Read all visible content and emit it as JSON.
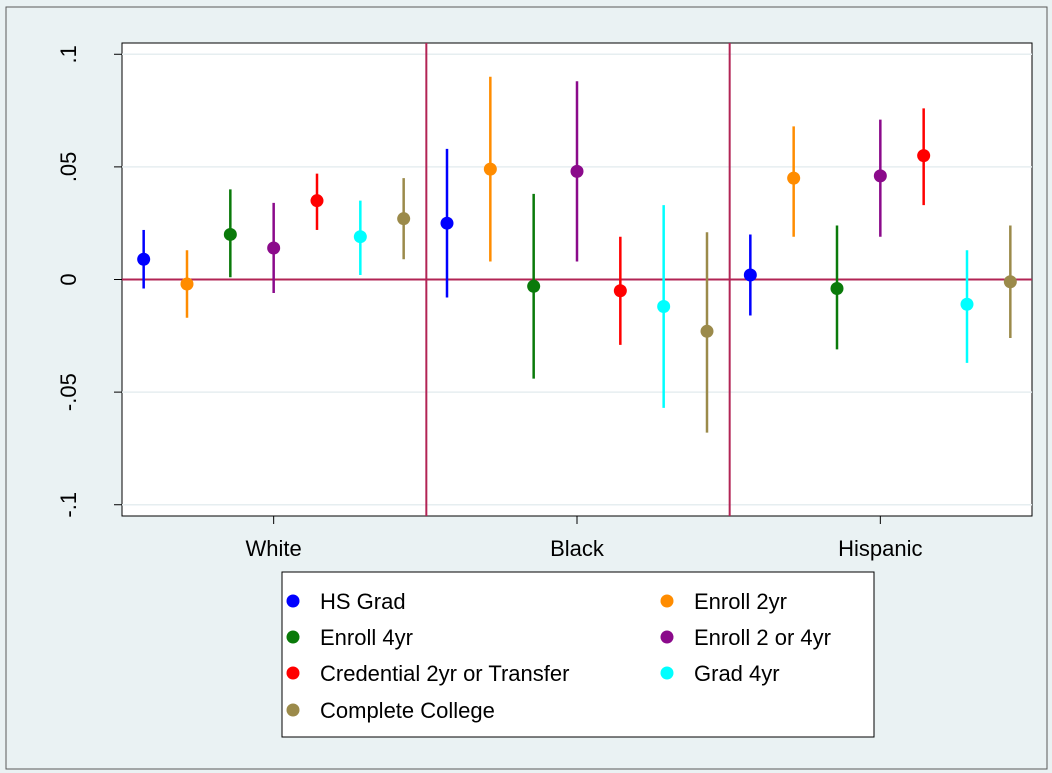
{
  "chart_data": {
    "type": "scatter",
    "subtype": "point-estimate with confidence intervals",
    "groups": [
      "White",
      "Black",
      "Hispanic"
    ],
    "ylim": [
      -0.105,
      0.105
    ],
    "yticks": [
      {
        "value": 0.1,
        "label": ".1"
      },
      {
        "value": 0.05,
        "label": ".05"
      },
      {
        "value": 0,
        "label": "0"
      },
      {
        "value": -0.05,
        "label": "-.05"
      },
      {
        "value": -0.1,
        "label": "-.1"
      }
    ],
    "reference_line_y": 0,
    "grid": true,
    "legend_position": "bottom",
    "colors": {
      "background": "#eaf2f3",
      "plot_background": "#ffffff",
      "reference_line": "#b22455",
      "separator_line": "#b22455",
      "grid": "#e6eef0"
    },
    "series": [
      {
        "name": "HS Grad",
        "color": "#0000ff",
        "points": [
          {
            "group": "White",
            "estimate": 0.009,
            "lower": -0.004,
            "upper": 0.022
          },
          {
            "group": "Black",
            "estimate": 0.025,
            "lower": -0.008,
            "upper": 0.058
          },
          {
            "group": "Hispanic",
            "estimate": 0.002,
            "lower": -0.016,
            "upper": 0.02
          }
        ]
      },
      {
        "name": "Enroll 2yr",
        "color": "#ff8c00",
        "points": [
          {
            "group": "White",
            "estimate": -0.002,
            "lower": -0.017,
            "upper": 0.013
          },
          {
            "group": "Black",
            "estimate": 0.049,
            "lower": 0.008,
            "upper": 0.09
          },
          {
            "group": "Hispanic",
            "estimate": 0.045,
            "lower": 0.019,
            "upper": 0.068
          }
        ]
      },
      {
        "name": "Enroll 4yr",
        "color": "#0a7a0a",
        "points": [
          {
            "group": "White",
            "estimate": 0.02,
            "lower": 0.001,
            "upper": 0.04
          },
          {
            "group": "Black",
            "estimate": -0.003,
            "lower": -0.044,
            "upper": 0.038
          },
          {
            "group": "Hispanic",
            "estimate": -0.004,
            "lower": -0.031,
            "upper": 0.024
          }
        ]
      },
      {
        "name": "Enroll 2 or 4yr",
        "color": "#8b0a8b",
        "points": [
          {
            "group": "White",
            "estimate": 0.014,
            "lower": -0.006,
            "upper": 0.034
          },
          {
            "group": "Black",
            "estimate": 0.048,
            "lower": 0.008,
            "upper": 0.088
          },
          {
            "group": "Hispanic",
            "estimate": 0.046,
            "lower": 0.019,
            "upper": 0.071
          }
        ]
      },
      {
        "name": "Credential 2yr or Transfer",
        "color": "#ff0000",
        "points": [
          {
            "group": "White",
            "estimate": 0.035,
            "lower": 0.022,
            "upper": 0.047
          },
          {
            "group": "Black",
            "estimate": -0.005,
            "lower": -0.029,
            "upper": 0.019
          },
          {
            "group": "Hispanic",
            "estimate": 0.055,
            "lower": 0.033,
            "upper": 0.076
          }
        ]
      },
      {
        "name": "Grad 4yr",
        "color": "#00ffff",
        "points": [
          {
            "group": "White",
            "estimate": 0.019,
            "lower": 0.002,
            "upper": 0.035
          },
          {
            "group": "Black",
            "estimate": -0.012,
            "lower": -0.057,
            "upper": 0.033
          },
          {
            "group": "Hispanic",
            "estimate": -0.011,
            "lower": -0.037,
            "upper": 0.013
          }
        ]
      },
      {
        "name": "Complete College",
        "color": "#9b8a4a",
        "points": [
          {
            "group": "White",
            "estimate": 0.027,
            "lower": 0.009,
            "upper": 0.045
          },
          {
            "group": "Black",
            "estimate": -0.023,
            "lower": -0.068,
            "upper": 0.021
          },
          {
            "group": "Hispanic",
            "estimate": -0.001,
            "lower": -0.026,
            "upper": 0.024
          }
        ]
      }
    ]
  }
}
